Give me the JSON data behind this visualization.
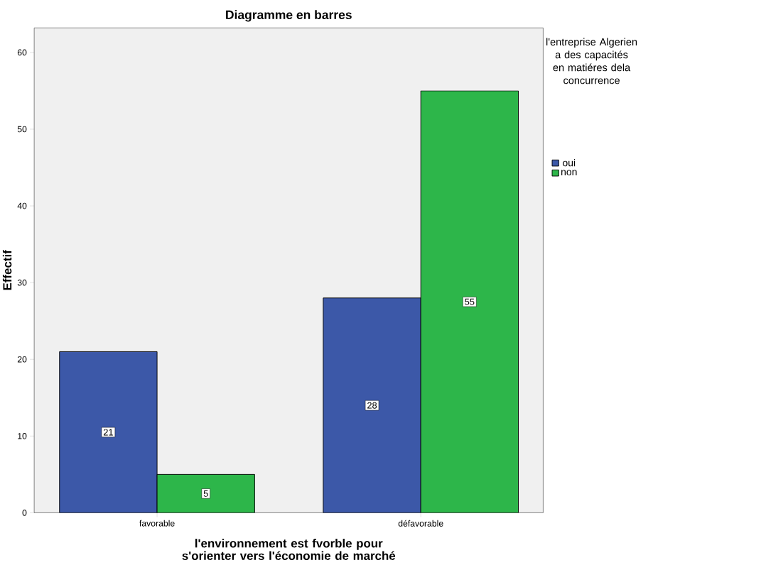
{
  "chart_data": {
    "type": "bar",
    "title": "Diagramme en barres",
    "xlabel": "l'environnement est fvorble pour s'orienter vers l'économie de marché",
    "ylabel": "Effectif",
    "legend_title": "l'entreprise Algerien a des capacités en matiéres dela concurrence",
    "categories": [
      "favorable",
      "défavorable"
    ],
    "series": [
      {
        "name": "oui",
        "color": "#3c58a8",
        "values": [
          21,
          28
        ]
      },
      {
        "name": "non",
        "color": "#2db64a",
        "values": [
          5,
          55
        ]
      }
    ],
    "ylim": [
      0,
      63.2
    ],
    "yticks": [
      0,
      10,
      20,
      30,
      40,
      50,
      60
    ],
    "data_labels": true,
    "legend": "top right",
    "grid": false
  }
}
